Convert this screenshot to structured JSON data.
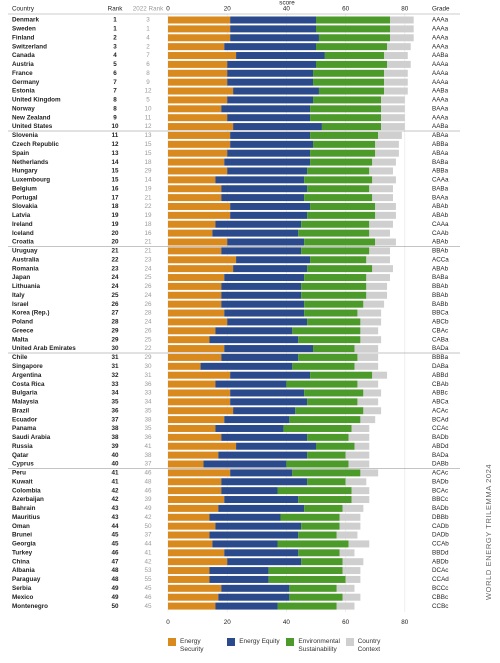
{
  "chart_data": {
    "type": "stacked-bar",
    "side_title": "WORLD ENERGY TRILEMMA 2024",
    "x_label": "score",
    "column_headers": {
      "country": "Country",
      "rank": "Rank",
      "rank_2022": "2022 Rank",
      "grade": "Grade"
    },
    "categories": [
      "Denmark",
      "Sweden",
      "Finland",
      "Switzerland",
      "Canada",
      "Austria",
      "France",
      "Germany",
      "Estonia",
      "United Kingdom",
      "Norway",
      "New Zealand",
      "United States",
      "Slovenia",
      "Czech Republic",
      "Spain",
      "Netherlands",
      "Hungary",
      "Luxembourg",
      "Belgium",
      "Portugal",
      "Slovakia",
      "Latvia",
      "Ireland",
      "Iceland",
      "Croatia",
      "Uruguay",
      "Australia",
      "Romania",
      "Japan",
      "Lithuania",
      "Italy",
      "Israel",
      "Korea (Rep.)",
      "Poland",
      "Greece",
      "Malta",
      "United Arab Emirates",
      "Chile",
      "Singapore",
      "Argentina",
      "Costa Rica",
      "Bulgaria",
      "Malaysia",
      "Brazil",
      "Ecuador",
      "Panama",
      "Saudi Arabia",
      "Russia",
      "Qatar",
      "Cyprus",
      "Peru",
      "Kuwait",
      "Colombia",
      "Azerbaijan",
      "Bahrain",
      "Mauritius",
      "Oman",
      "Brunei",
      "Georgia",
      "Turkey",
      "China",
      "Albania",
      "Paraguay",
      "Serbia",
      "Mexico",
      "Montenegro"
    ],
    "ranks": [
      1,
      1,
      2,
      3,
      4,
      5,
      6,
      7,
      7,
      8,
      8,
      9,
      10,
      11,
      12,
      13,
      14,
      15,
      15,
      16,
      17,
      18,
      19,
      19,
      20,
      20,
      21,
      22,
      23,
      24,
      24,
      25,
      26,
      27,
      28,
      29,
      29,
      30,
      31,
      31,
      32,
      33,
      34,
      35,
      36,
      37,
      38,
      38,
      39,
      40,
      40,
      41,
      41,
      42,
      42,
      43,
      43,
      44,
      45,
      45,
      46,
      47,
      48,
      48,
      49,
      49,
      50
    ],
    "ranks_2022": [
      3,
      1,
      4,
      2,
      7,
      6,
      8,
      9,
      12,
      5,
      10,
      11,
      12,
      13,
      15,
      15,
      18,
      29,
      14,
      19,
      21,
      22,
      19,
      18,
      16,
      21,
      21,
      23,
      24,
      25,
      26,
      24,
      26,
      28,
      24,
      26,
      25,
      22,
      29,
      30,
      31,
      36,
      33,
      34,
      35,
      38,
      35,
      36,
      41,
      38,
      37,
      46,
      48,
      46,
      39,
      49,
      42,
      50,
      37,
      44,
      41,
      42,
      53,
      55,
      45,
      46,
      45
    ],
    "grades": [
      "AAAa",
      "AAAa",
      "AAAa",
      "AAAa",
      "AABa",
      "AAAa",
      "AAAa",
      "AAAa",
      "AABa",
      "AAAa",
      "BAAa",
      "AAAa",
      "AABa",
      "ABAa",
      "ABBa",
      "ABAa",
      "BABa",
      "ABBa",
      "CAAa",
      "BABa",
      "BAAa",
      "ABAb",
      "ABAb",
      "CAAa",
      "CAAb",
      "ABAb",
      "BBAb",
      "ACCa",
      "ABAb",
      "BABa",
      "BBAb",
      "BBAb",
      "BABb",
      "BBCa",
      "ABCb",
      "CBAc",
      "CABa",
      "BADa",
      "BBBa",
      "DABa",
      "ABBd",
      "CBAb",
      "ABBc",
      "ABCa",
      "ACAc",
      "BCAd",
      "CCAc",
      "BADb",
      "ABDd",
      "BADa",
      "DABb",
      "ACAc",
      "BADb",
      "BCAc",
      "BBCc",
      "BADb",
      "DBBb",
      "CADb",
      "DADb",
      "CCAb",
      "BBDd",
      "ABDb",
      "DCAc",
      "CCAd",
      "BCCc",
      "CBBc",
      "CCBc"
    ],
    "series": [
      {
        "name": "Energy Security",
        "color": "#d98a1f",
        "values": [
          21,
          21,
          21,
          19,
          23,
          20,
          20,
          20,
          22,
          20,
          18,
          20,
          22,
          21,
          21,
          20,
          19,
          20,
          16,
          18,
          18,
          21,
          21,
          16,
          15,
          20,
          18,
          23,
          22,
          19,
          18,
          18,
          18,
          19,
          20,
          16,
          14,
          19,
          18,
          11,
          21,
          16,
          21,
          21,
          22,
          19,
          16,
          18,
          23,
          17,
          12,
          21,
          18,
          18,
          19,
          17,
          14,
          16,
          14,
          15,
          19,
          20,
          14,
          14,
          18,
          17,
          16
        ]
      },
      {
        "name": "Energy Equity",
        "color": "#2b4a8b",
        "values": [
          29,
          29,
          30,
          31,
          30,
          30,
          29,
          29,
          29,
          29,
          30,
          28,
          30,
          27,
          28,
          28,
          29,
          27,
          30,
          29,
          28,
          27,
          26,
          29,
          29,
          26,
          27,
          25,
          25,
          27,
          27,
          27,
          28,
          27,
          27,
          26,
          30,
          30,
          26,
          31,
          27,
          24,
          25,
          26,
          21,
          22,
          23,
          29,
          27,
          30,
          28,
          21,
          29,
          19,
          25,
          29,
          24,
          29,
          30,
          22,
          25,
          25,
          20,
          20,
          23,
          24,
          21
        ]
      },
      {
        "name": "Environmental Sustainability",
        "color": "#4c9a2a",
        "values": [
          25,
          25,
          24,
          24,
          20,
          24,
          24,
          24,
          22,
          23,
          24,
          24,
          20,
          23,
          21,
          22,
          21,
          21,
          23,
          21,
          23,
          22,
          23,
          23,
          24,
          24,
          23,
          19,
          22,
          21,
          22,
          22,
          20,
          18,
          18,
          23,
          21,
          14,
          20,
          21,
          21,
          24,
          20,
          17,
          23,
          24,
          23,
          14,
          13,
          13,
          21,
          23,
          13,
          25,
          18,
          13,
          20,
          13,
          13,
          24,
          14,
          14,
          25,
          26,
          16,
          18,
          20
        ]
      },
      {
        "name": "Country Context",
        "color": "#cfcfcf",
        "values": [
          8,
          8,
          8,
          8,
          8,
          8,
          8,
          8,
          8,
          8,
          8,
          8,
          8,
          8,
          8,
          8,
          8,
          8,
          8,
          8,
          7,
          7,
          7,
          8,
          7,
          7,
          7,
          8,
          7,
          8,
          7,
          7,
          7,
          8,
          7,
          6,
          7,
          8,
          7,
          8,
          5,
          7,
          6,
          7,
          6,
          5,
          6,
          7,
          5,
          8,
          7,
          6,
          7,
          6,
          6,
          7,
          7,
          7,
          7,
          7,
          5,
          7,
          6,
          5,
          6,
          6,
          6
        ]
      }
    ],
    "xlim": [
      0,
      85
    ],
    "xticks": [
      0,
      20,
      40,
      60,
      80
    ],
    "grid": true
  }
}
